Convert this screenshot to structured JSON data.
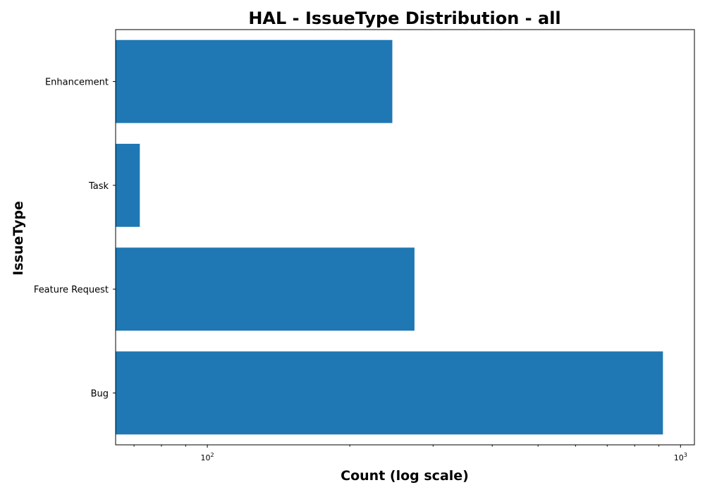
{
  "chart_data": {
    "type": "bar",
    "orientation": "horizontal",
    "title": "HAL - IssueType Distribution - all",
    "xlabel": "Count (log scale)",
    "ylabel": "IssueType",
    "categories": [
      "Bug",
      "Feature Request",
      "Task",
      "Enhancement"
    ],
    "values": [
      918,
      274,
      72,
      246
    ],
    "xscale": "log",
    "xlim": [
      64,
      1070
    ],
    "major_ticks": [
      {
        "value": 100,
        "label": "10",
        "exp": "2"
      },
      {
        "value": 1000,
        "label": "10",
        "exp": "3"
      }
    ],
    "grid": false,
    "bar_color": "#1f77b4"
  }
}
